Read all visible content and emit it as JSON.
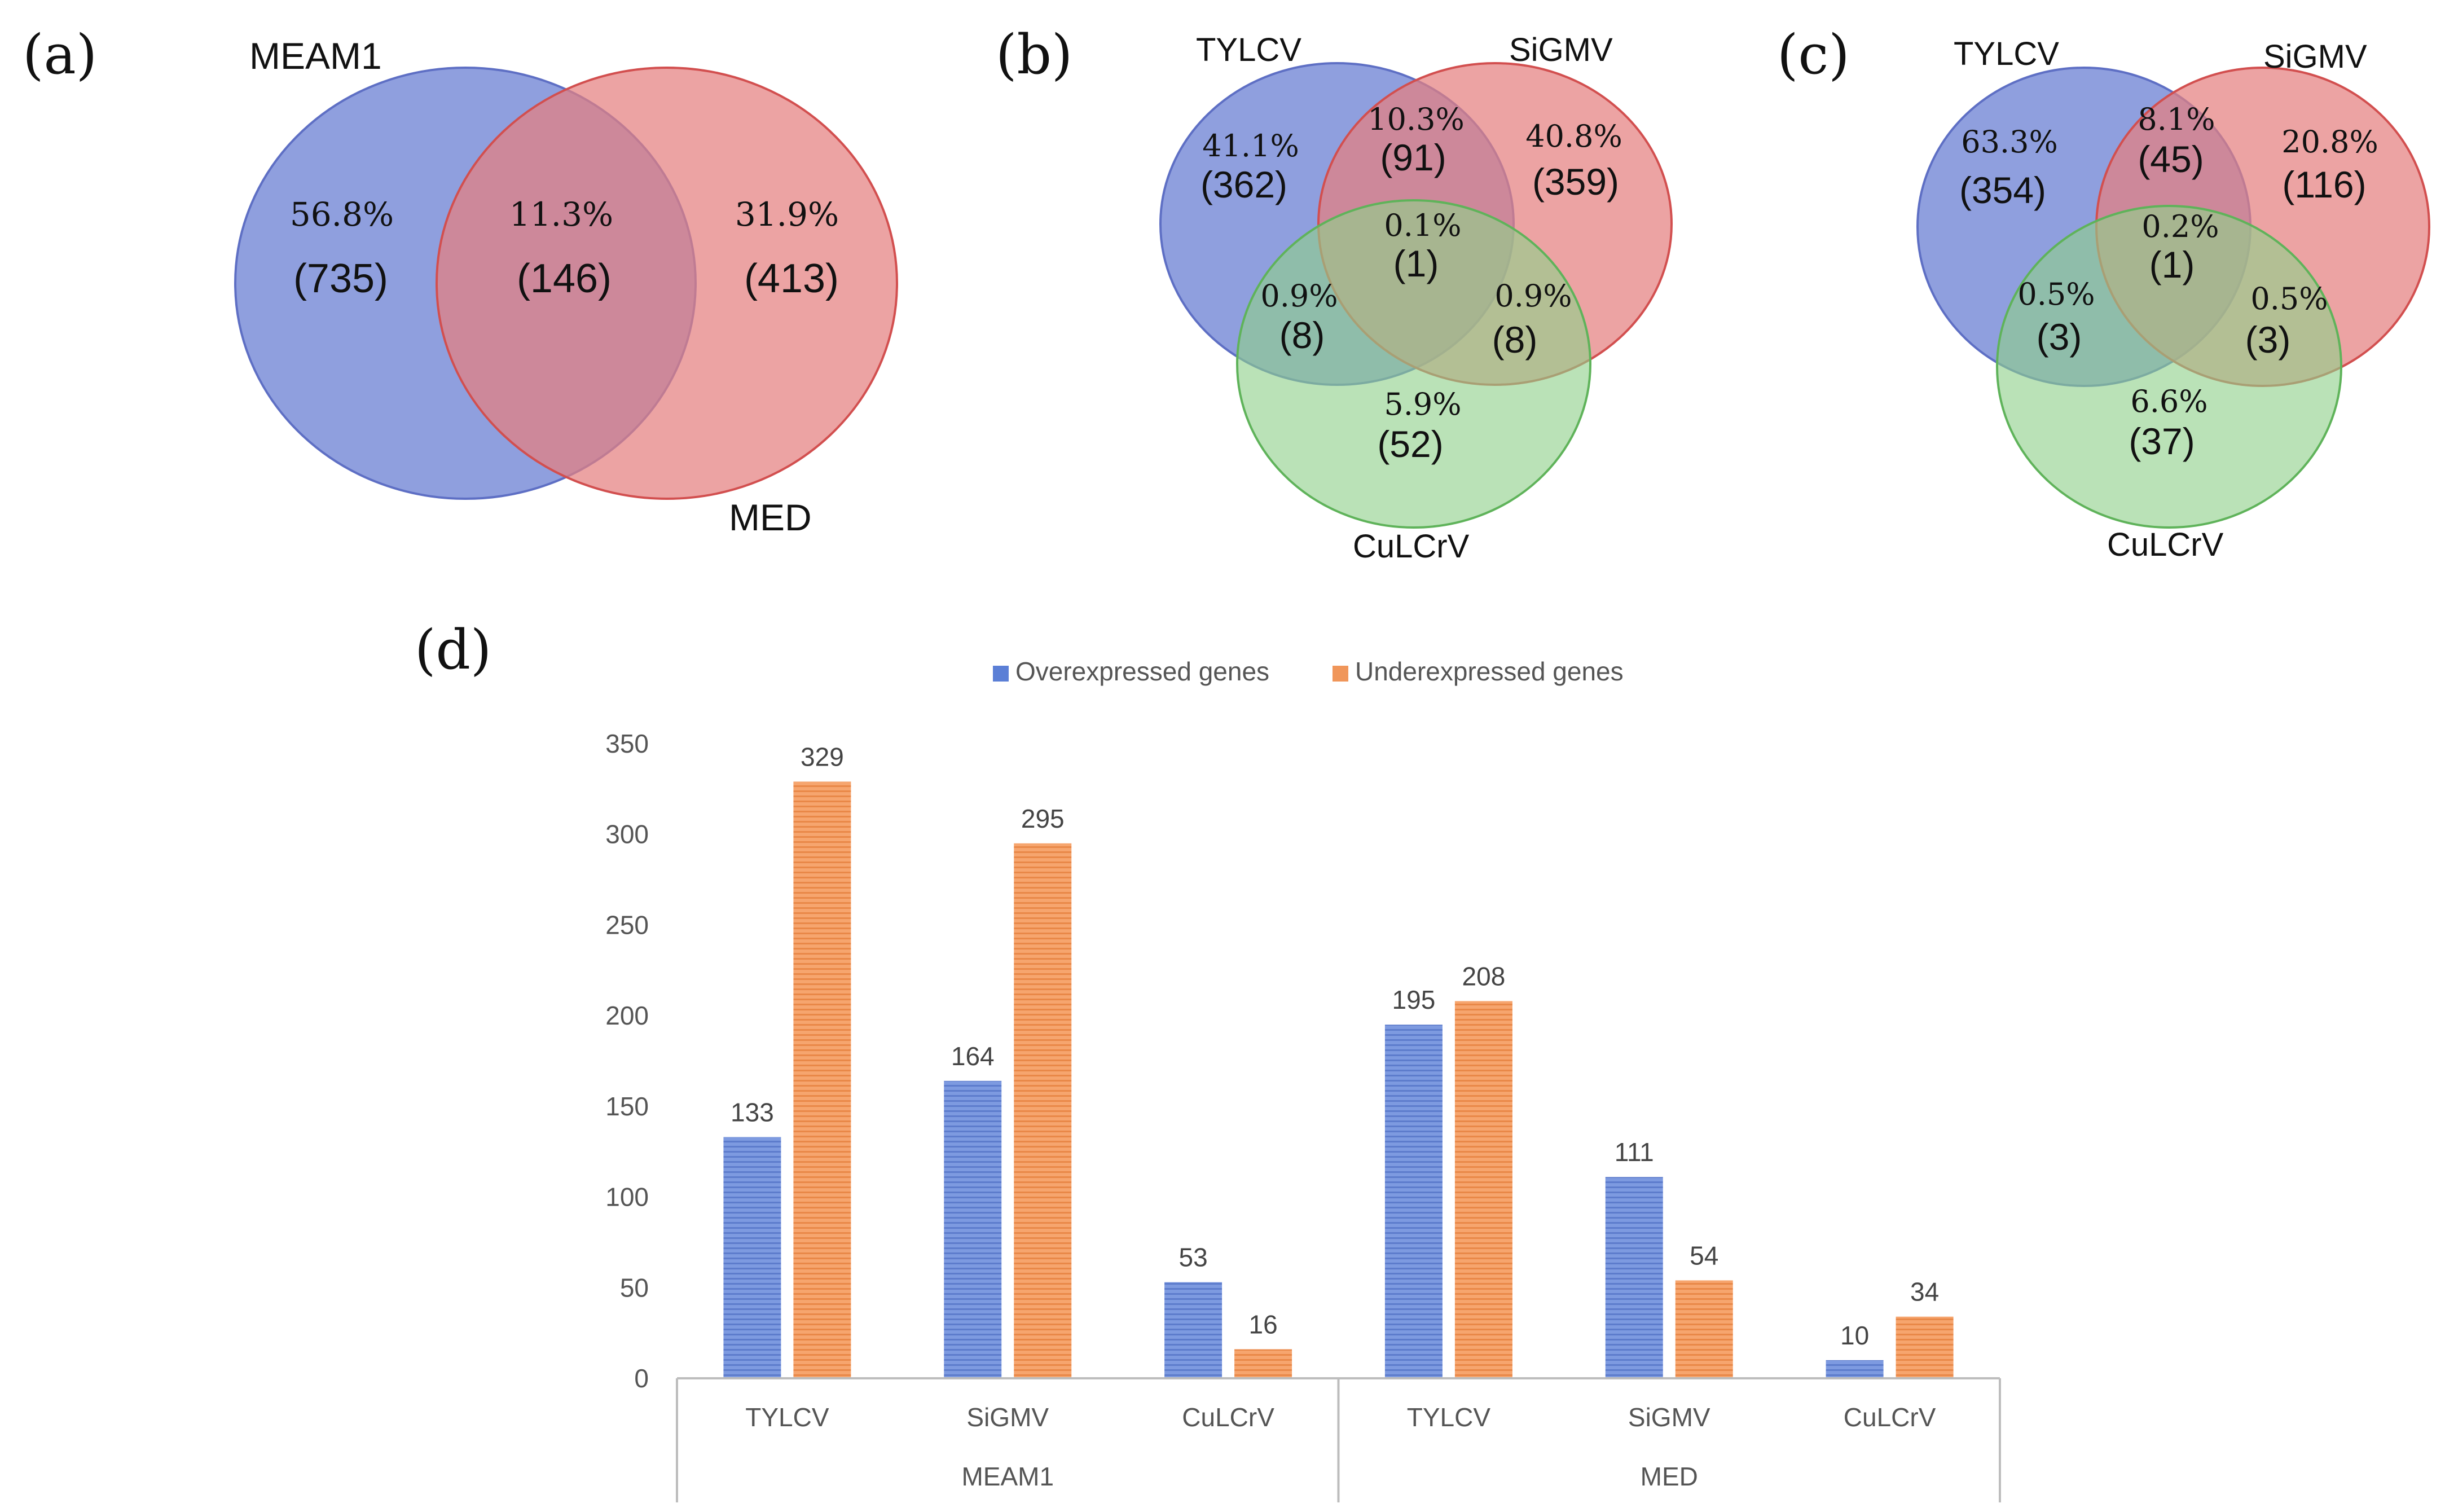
{
  "panel_a": {
    "panel_label": "(a)",
    "sets": [
      {
        "name": "MEAM1",
        "color": "#7b8ed8"
      },
      {
        "name": "MED",
        "color": "#e57f7f"
      }
    ],
    "regions": [
      {
        "key": "meam1_only",
        "pct": "56.8%",
        "count": "(735)"
      },
      {
        "key": "shared",
        "pct": "11.3%",
        "count": "(146)"
      },
      {
        "key": "med_only",
        "pct": "31.9%",
        "count": "(413)"
      }
    ]
  },
  "panel_b": {
    "panel_label": "(b)",
    "sets": [
      {
        "name": "TYLCV",
        "color": "#7b8ed8"
      },
      {
        "name": "SiGMV",
        "color": "#e57f7f"
      },
      {
        "name": "CuLCrV",
        "color": "#8fd18a"
      }
    ],
    "regions": [
      {
        "key": "tylcv_only",
        "pct": "41.1%",
        "count": "(362)"
      },
      {
        "key": "tylcv_sigmv",
        "pct": "10.3%",
        "count": "(91)"
      },
      {
        "key": "sigmv_only",
        "pct": "40.8%",
        "count": "(359)"
      },
      {
        "key": "all_three",
        "pct": "0.1%",
        "count": "(1)"
      },
      {
        "key": "tylcv_culcrv",
        "pct": "0.9%",
        "count": "(8)"
      },
      {
        "key": "sigmv_culcrv",
        "pct": "0.9%",
        "count": "(8)"
      },
      {
        "key": "culcrv_only",
        "pct": "5.9%",
        "count": "(52)"
      }
    ]
  },
  "panel_c": {
    "panel_label": "(c)",
    "sets": [
      {
        "name": "TYLCV",
        "color": "#7b8ed8"
      },
      {
        "name": "SiGMV",
        "color": "#e57f7f"
      },
      {
        "name": "CuLCrV",
        "color": "#8fd18a"
      }
    ],
    "regions": [
      {
        "key": "tylcv_only",
        "pct": "63.3%",
        "count": "(354)"
      },
      {
        "key": "tylcv_sigmv",
        "pct": "8.1%",
        "count": "(45)"
      },
      {
        "key": "sigmv_only",
        "pct": "20.8%",
        "count": "(116)"
      },
      {
        "key": "all_three",
        "pct": "0.2%",
        "count": "(1)"
      },
      {
        "key": "tylcv_culcrv",
        "pct": "0.5%",
        "count": "(3)"
      },
      {
        "key": "sigmv_culcrv",
        "pct": "0.5%",
        "count": "(3)"
      },
      {
        "key": "culcrv_only",
        "pct": "6.6%",
        "count": "(37)"
      }
    ]
  },
  "chart_data": {
    "type": "bar",
    "panel_label": "(d)",
    "title": "",
    "xlabel": "",
    "ylabel": "",
    "ylim": [
      0,
      350
    ],
    "yticks": [
      0,
      50,
      100,
      150,
      200,
      250,
      300,
      350
    ],
    "grid": false,
    "legend_position": "top-center",
    "groups": [
      {
        "name": "MEAM1",
        "categories": [
          "TYLCV",
          "SiGMV",
          "CuLCrV"
        ]
      },
      {
        "name": "MED",
        "categories": [
          "TYLCV",
          "SiGMV",
          "CuLCrV"
        ]
      }
    ],
    "series": [
      {
        "name": "Overexpressed genes",
        "color": "#6f8fd6",
        "values": [
          133,
          164,
          53,
          195,
          111,
          10
        ]
      },
      {
        "name": "Underexpressed genes",
        "color": "#f0965a",
        "values": [
          329,
          295,
          16,
          208,
          54,
          34
        ]
      }
    ]
  }
}
